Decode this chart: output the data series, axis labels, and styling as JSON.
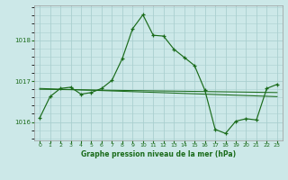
{
  "title": "Graphe pression niveau de la mer (hPa)",
  "background_color": "#cce8e8",
  "grid_color": "#aacfcf",
  "line_color": "#1a6b1a",
  "xlim": [
    -0.5,
    23.5
  ],
  "ylim": [
    1015.55,
    1018.85
  ],
  "yticks": [
    1016,
    1017,
    1018
  ],
  "xticks": [
    0,
    1,
    2,
    3,
    4,
    5,
    6,
    7,
    8,
    9,
    10,
    11,
    12,
    13,
    14,
    15,
    16,
    17,
    18,
    19,
    20,
    21,
    22,
    23
  ],
  "flat_line1": {
    "x": [
      0,
      23
    ],
    "y": [
      1016.82,
      1016.62
    ]
  },
  "flat_line2": {
    "x": [
      0,
      23
    ],
    "y": [
      1016.8,
      1016.72
    ]
  },
  "main_series": {
    "x": [
      0,
      1,
      2,
      3,
      4,
      5,
      6,
      7,
      8,
      9,
      10,
      11,
      12,
      13,
      14,
      15,
      16,
      17,
      18,
      19,
      20,
      21,
      22,
      23
    ],
    "y": [
      1016.1,
      1016.62,
      1016.82,
      1016.85,
      1016.68,
      1016.72,
      1016.82,
      1017.02,
      1017.55,
      1018.28,
      1018.62,
      1018.12,
      1018.1,
      1017.78,
      1017.58,
      1017.38,
      1016.78,
      1015.82,
      1015.72,
      1016.02,
      1016.08,
      1016.05,
      1016.82,
      1016.92
    ]
  }
}
